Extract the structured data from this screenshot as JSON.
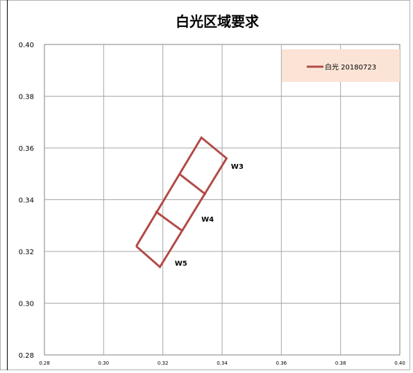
{
  "chart_data": {
    "type": "line",
    "title": "白光区域要求",
    "xlim": [
      0.28,
      0.4
    ],
    "ylim": [
      0.28,
      0.4
    ],
    "x_ticks": [
      "0.28",
      "0.30",
      "0.32",
      "0.34",
      "0.36",
      "0.38",
      "0.40"
    ],
    "y_ticks": [
      "0.28",
      "0.30",
      "0.32",
      "0.34",
      "0.36",
      "0.38",
      "0.40"
    ],
    "grid": true,
    "legend_position": "top-right",
    "legend_bg": "#fbe4d5",
    "series": [
      {
        "name": "白光 20180723",
        "color": "#b24a47",
        "x": [
          0.311,
          0.319,
          0.3415,
          0.333,
          0.311
        ],
        "y": [
          0.322,
          0.314,
          0.356,
          0.364,
          0.322
        ]
      }
    ],
    "dividers": [
      {
        "x": [
          0.3175,
          0.3265
        ],
        "y": [
          0.3355,
          0.328
        ]
      },
      {
        "x": [
          0.3255,
          0.3345
        ],
        "y": [
          0.35,
          0.342
        ]
      }
    ],
    "annotations": [
      {
        "text": "W3",
        "x": 0.343,
        "y": 0.352
      },
      {
        "text": "W4",
        "x": 0.333,
        "y": 0.3315
      },
      {
        "text": "W5",
        "x": 0.324,
        "y": 0.3145
      }
    ]
  }
}
